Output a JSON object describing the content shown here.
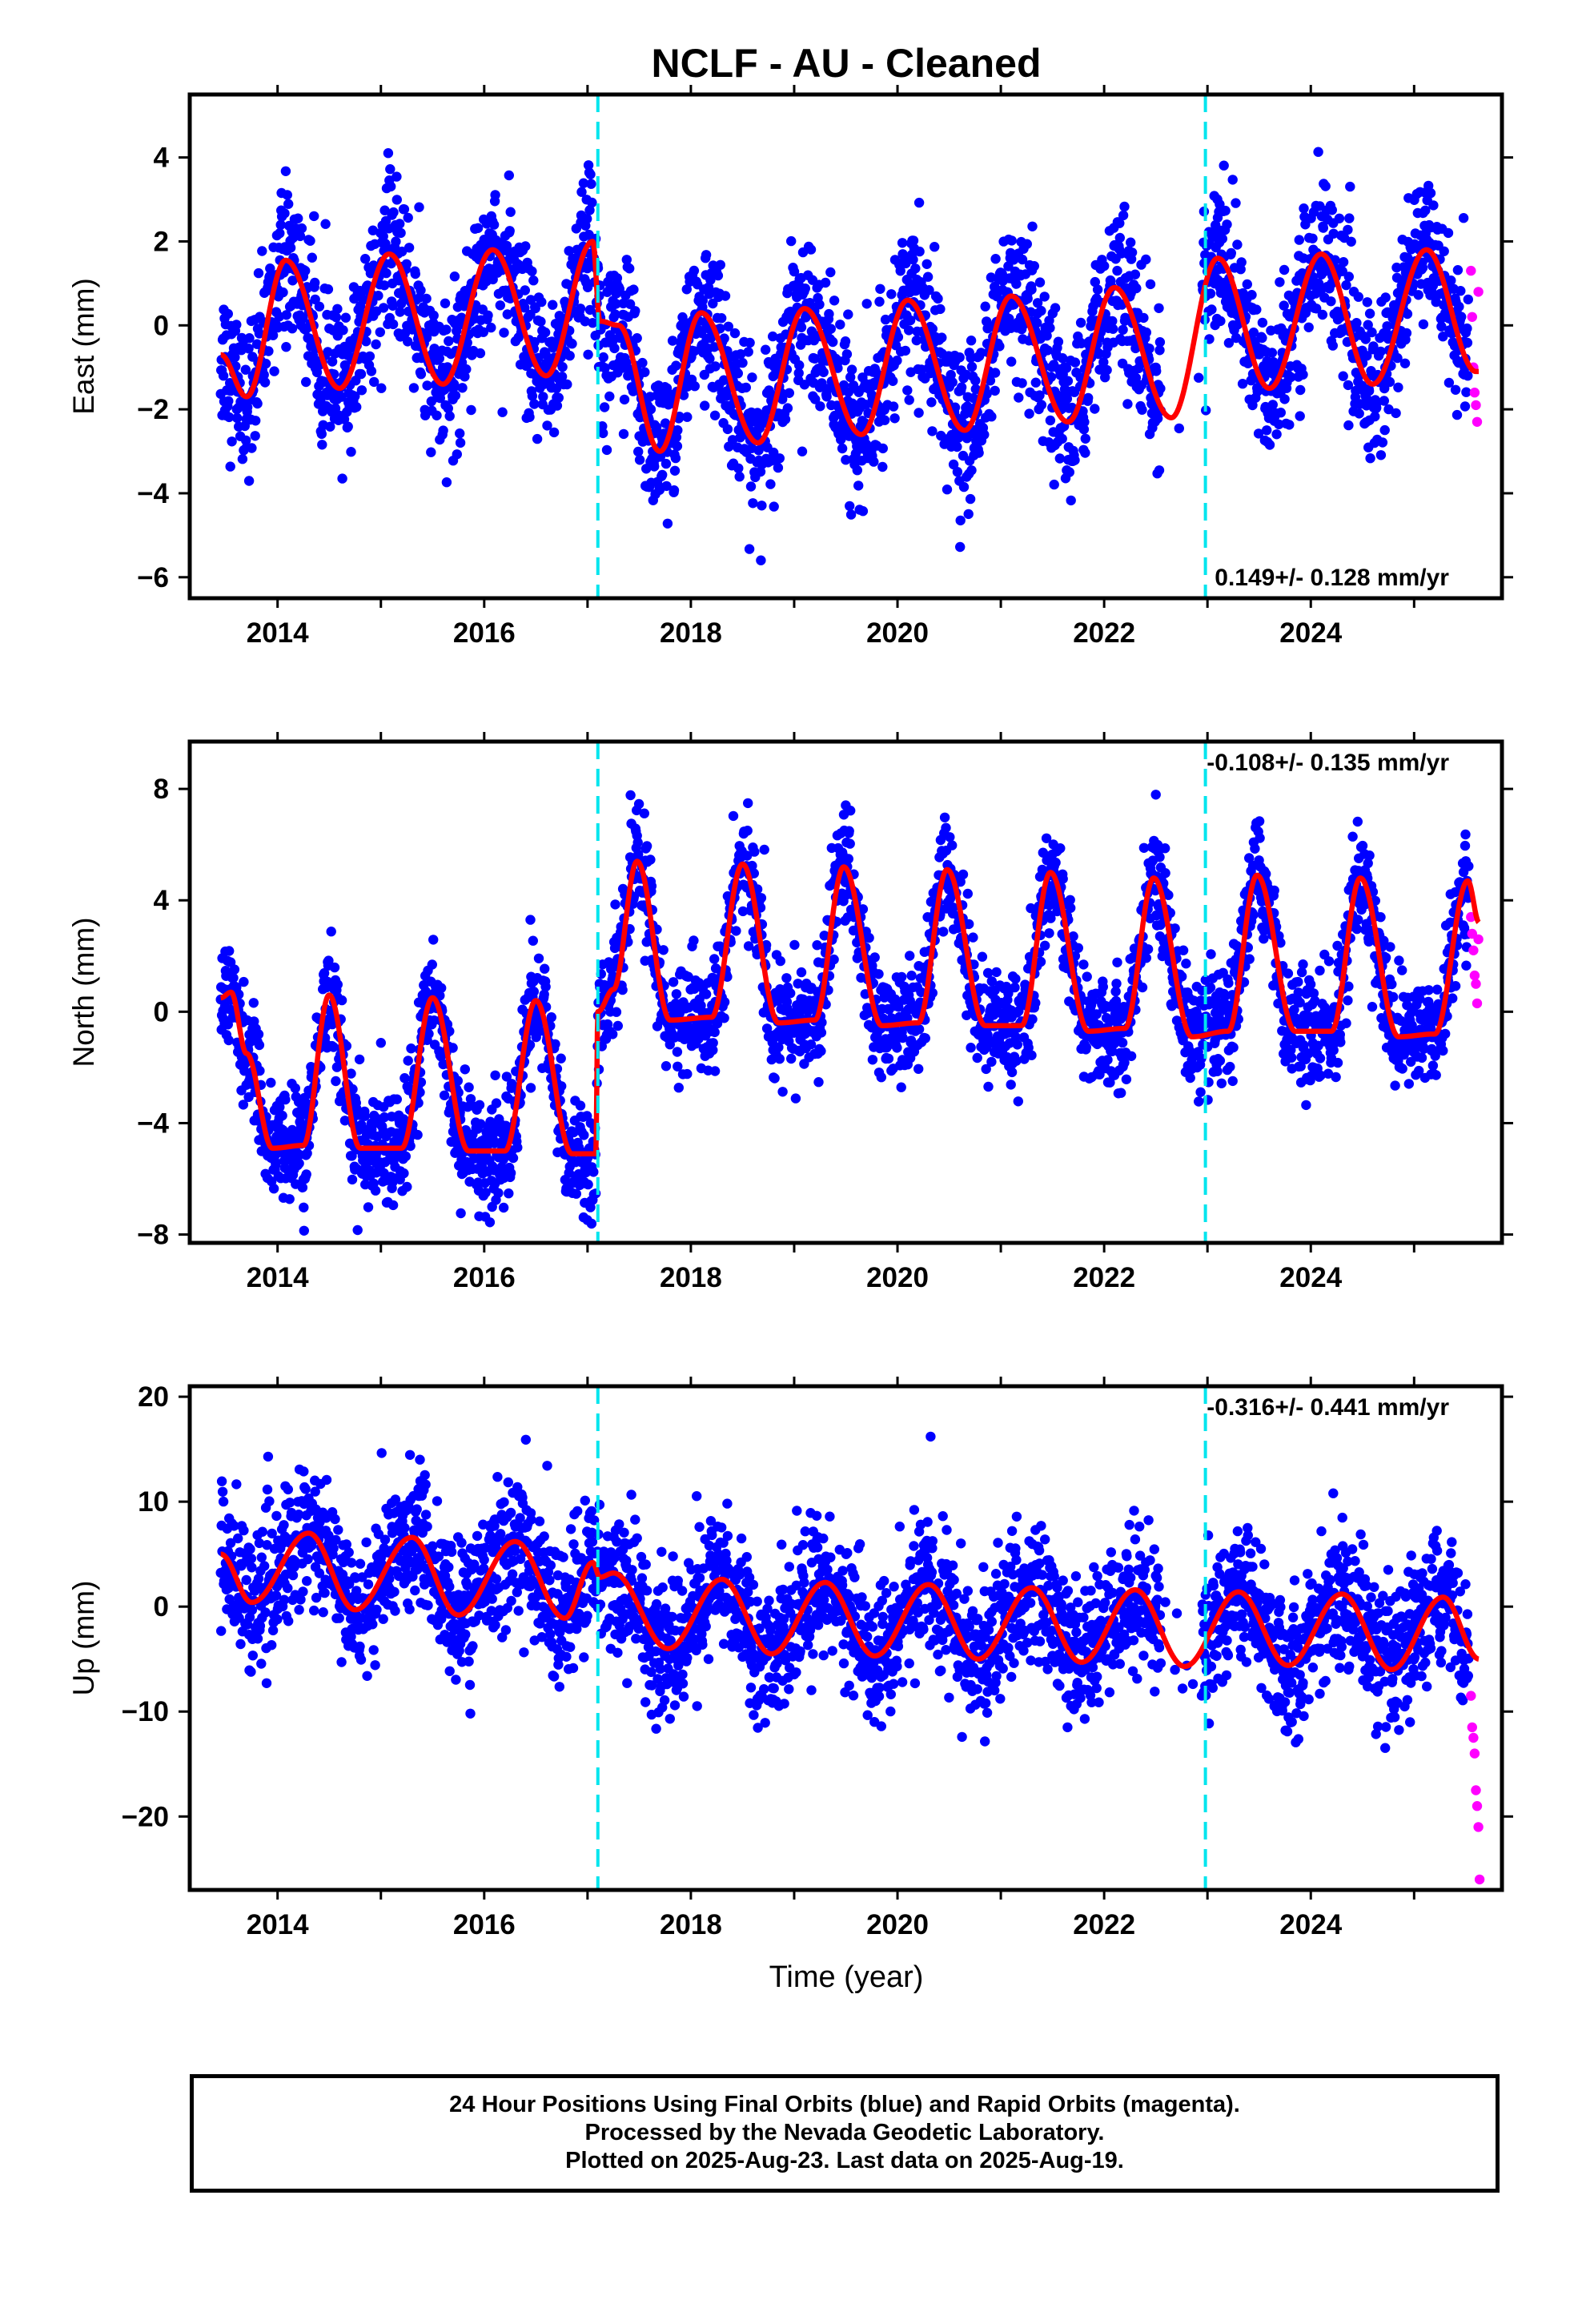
{
  "title": "NCLF  - AU - Cleaned",
  "xlabel": "Time (year)",
  "colors": {
    "final": "#0000ff",
    "rapid": "#ff00ff",
    "model": "#ff0000",
    "break": "#00e5ee"
  },
  "footer": {
    "line1": "24 Hour Positions Using Final Orbits (blue) and Rapid Orbits (magenta).",
    "line2": "Processed by the Nevada Geodetic Laboratory.",
    "line3": "Plotted on 2025-Aug-23. Last data on 2025-Aug-19."
  },
  "chart_data": [
    {
      "type": "scatter",
      "component": "east",
      "ylabel": "East (mm)",
      "rate_text": "0.149+/- 0.128 mm/yr",
      "rate_position": "bottom-right",
      "xlim": [
        2013.15,
        2025.85
      ],
      "ylim": [
        -6.5,
        5.5
      ],
      "xticks": [
        2014,
        2016,
        2018,
        2020,
        2022,
        2024
      ],
      "yticks": [
        -6,
        -4,
        -2,
        0,
        2,
        4
      ],
      "ytick_labels": [
        "−6",
        "−4",
        "−2",
        "0",
        "2",
        "4"
      ],
      "breaks": [
        2017.1,
        2022.98
      ],
      "data_start": 2013.45,
      "final_end": 2025.53,
      "data_end": 2025.63,
      "model": {
        "segments": [
          {
            "from": 2013.45,
            "to": 2017.1,
            "offset": 0.15,
            "amp": 1.6,
            "phase": 2013.05,
            "trend": 0.03
          },
          {
            "from": 2017.1,
            "to": 2022.98,
            "offset": -1.2,
            "amp": 1.55,
            "phase": 2013.05,
            "trend": 0.05
          },
          {
            "from": 2022.98,
            "to": 2025.63,
            "offset": 0.2,
            "amp": 1.55,
            "phase": 2013.05,
            "trend": 0.0
          }
        ],
        "knots": [
          [
            2013.45,
            -0.7
          ],
          [
            2013.7,
            -1.7
          ],
          [
            2014.08,
            1.55
          ],
          [
            2014.6,
            -1.5
          ],
          [
            2015.08,
            1.7
          ],
          [
            2015.6,
            -1.4
          ],
          [
            2016.08,
            1.8
          ],
          [
            2016.6,
            -1.2
          ],
          [
            2017.05,
            2.0
          ],
          [
            2017.12,
            0.1
          ],
          [
            2017.3,
            0.0
          ],
          [
            2017.7,
            -3.0
          ],
          [
            2018.1,
            0.3
          ],
          [
            2018.65,
            -2.8
          ],
          [
            2019.1,
            0.4
          ],
          [
            2019.65,
            -2.6
          ],
          [
            2020.1,
            0.6
          ],
          [
            2020.65,
            -2.5
          ],
          [
            2021.1,
            0.7
          ],
          [
            2021.65,
            -2.3
          ],
          [
            2022.1,
            0.9
          ],
          [
            2022.65,
            -2.2
          ],
          [
            2023.1,
            1.6
          ],
          [
            2023.6,
            -1.5
          ],
          [
            2024.1,
            1.7
          ],
          [
            2024.6,
            -1.4
          ],
          [
            2025.12,
            1.8
          ],
          [
            2025.6,
            -1.1
          ]
        ],
        "scatter_sigma": 0.9,
        "rapid_values": [
          1.3,
          0.2,
          -1.0,
          -1.6,
          -1.9,
          -2.3,
          0.8
        ]
      }
    },
    {
      "type": "scatter",
      "component": "north",
      "ylabel": "North (mm)",
      "rate_text": "-0.108+/- 0.135 mm/yr",
      "rate_position": "top-right",
      "xlim": [
        2013.15,
        2025.85
      ],
      "ylim": [
        -8.3,
        9.7
      ],
      "xticks": [
        2014,
        2016,
        2018,
        2020,
        2022,
        2024
      ],
      "yticks": [
        -8,
        -4,
        0,
        4,
        8
      ],
      "ytick_labels": [
        "−8",
        "−4",
        "0",
        "4",
        "8"
      ],
      "breaks": [
        2017.1,
        2022.98
      ],
      "data_start": 2013.45,
      "final_end": 2025.53,
      "data_end": 2025.63,
      "model": {
        "knots": [
          [
            2013.45,
            0.5
          ],
          [
            2013.55,
            0.7
          ],
          [
            2013.7,
            -1.5
          ],
          [
            2013.95,
            -4.9
          ],
          [
            2014.25,
            -4.8
          ],
          [
            2014.5,
            0.6
          ],
          [
            2014.8,
            -4.9
          ],
          [
            2015.2,
            -4.9
          ],
          [
            2015.5,
            0.5
          ],
          [
            2015.85,
            -5.0
          ],
          [
            2016.2,
            -5.0
          ],
          [
            2016.5,
            0.4
          ],
          [
            2016.85,
            -5.1
          ],
          [
            2017.08,
            -5.1
          ],
          [
            2017.1,
            0.0
          ],
          [
            2017.25,
            0.8
          ],
          [
            2017.48,
            5.4
          ],
          [
            2017.8,
            -0.3
          ],
          [
            2018.2,
            -0.2
          ],
          [
            2018.5,
            5.3
          ],
          [
            2018.85,
            -0.4
          ],
          [
            2019.2,
            -0.3
          ],
          [
            2019.48,
            5.2
          ],
          [
            2019.85,
            -0.5
          ],
          [
            2020.2,
            -0.4
          ],
          [
            2020.48,
            5.1
          ],
          [
            2020.85,
            -0.5
          ],
          [
            2021.2,
            -0.5
          ],
          [
            2021.48,
            5.0
          ],
          [
            2021.85,
            -0.7
          ],
          [
            2022.2,
            -0.6
          ],
          [
            2022.48,
            4.8
          ],
          [
            2022.85,
            -0.9
          ],
          [
            2023.2,
            -0.7
          ],
          [
            2023.48,
            4.9
          ],
          [
            2023.85,
            -0.7
          ],
          [
            2024.2,
            -0.7
          ],
          [
            2024.48,
            4.8
          ],
          [
            2024.85,
            -0.9
          ],
          [
            2025.2,
            -0.8
          ],
          [
            2025.52,
            4.7
          ],
          [
            2025.63,
            3.2
          ]
        ],
        "scatter_sigma": 1.0,
        "rapid_values": [
          3.4,
          2.8,
          2.2,
          1.3,
          1.0,
          0.3,
          2.6
        ]
      }
    },
    {
      "type": "scatter",
      "component": "up",
      "ylabel": "Up (mm)",
      "rate_text": "-0.316+/- 0.441 mm/yr",
      "rate_position": "top-right",
      "xlim": [
        2013.15,
        2025.85
      ],
      "ylim": [
        -27,
        21
      ],
      "xticks": [
        2014,
        2016,
        2018,
        2020,
        2022,
        2024
      ],
      "yticks": [
        -20,
        -10,
        0,
        10,
        20
      ],
      "ytick_labels": [
        "−20",
        "−10",
        "0",
        "10",
        "20"
      ],
      "breaks": [
        2017.1,
        2022.98
      ],
      "data_start": 2013.45,
      "final_end": 2025.53,
      "data_end": 2025.63,
      "model": {
        "knots": [
          [
            2013.45,
            5.0
          ],
          [
            2013.75,
            0.4
          ],
          [
            2014.3,
            7.0
          ],
          [
            2014.75,
            -0.3
          ],
          [
            2015.3,
            6.6
          ],
          [
            2015.75,
            -0.8
          ],
          [
            2016.3,
            6.2
          ],
          [
            2016.78,
            -1.1
          ],
          [
            2017.05,
            4.2
          ],
          [
            2017.12,
            2.8
          ],
          [
            2017.25,
            3.2
          ],
          [
            2017.78,
            -4.0
          ],
          [
            2018.3,
            2.6
          ],
          [
            2018.78,
            -4.5
          ],
          [
            2019.3,
            2.3
          ],
          [
            2019.78,
            -4.7
          ],
          [
            2020.3,
            2.1
          ],
          [
            2020.78,
            -5.0
          ],
          [
            2021.3,
            1.8
          ],
          [
            2021.78,
            -5.3
          ],
          [
            2022.3,
            1.6
          ],
          [
            2022.78,
            -5.7
          ],
          [
            2023.3,
            1.4
          ],
          [
            2023.78,
            -5.6
          ],
          [
            2024.3,
            1.2
          ],
          [
            2024.78,
            -6.0
          ],
          [
            2025.28,
            0.9
          ],
          [
            2025.63,
            -5.0
          ]
        ],
        "scatter_sigma": 3.3,
        "rapid_values": [
          -8.5,
          -11.5,
          -12.5,
          -14.0,
          -17.5,
          -19.0,
          -21.0,
          -26.0
        ]
      }
    }
  ]
}
